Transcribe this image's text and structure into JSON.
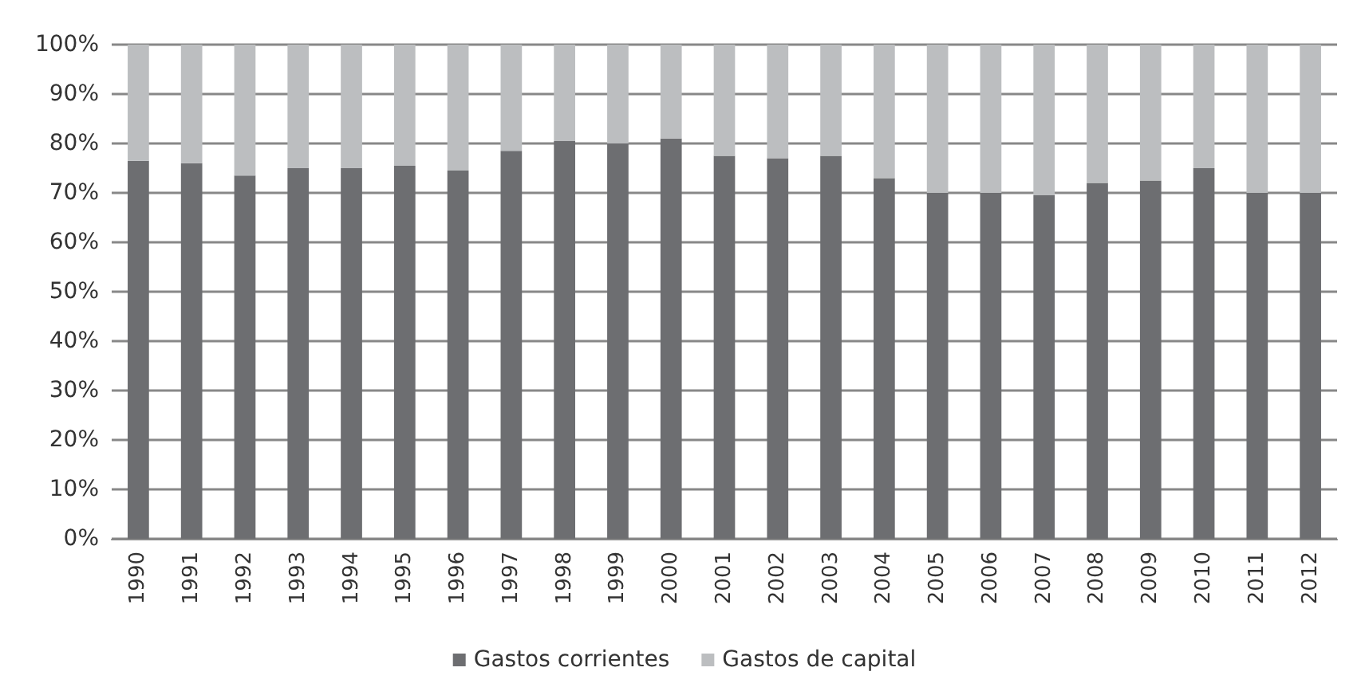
{
  "chart_data": {
    "type": "bar",
    "stacked": true,
    "categories": [
      "1990",
      "1991",
      "1992",
      "1993",
      "1994",
      "1995",
      "1996",
      "1997",
      "1998",
      "1999",
      "2000",
      "2001",
      "2002",
      "2003",
      "2004",
      "2005",
      "2006",
      "2007",
      "2008",
      "2009",
      "2010",
      "2011",
      "2012"
    ],
    "series": [
      {
        "name": "Gastos corrientes",
        "color": "#6d6e71",
        "values": [
          76.5,
          76,
          73.5,
          75,
          75,
          75.5,
          74.5,
          78.5,
          80.5,
          80,
          81,
          77.5,
          77,
          77.5,
          73,
          70,
          70,
          69.5,
          72,
          72.5,
          75,
          70,
          70
        ]
      },
      {
        "name": "Gastos de capital",
        "color": "#bcbec0",
        "values": [
          23.5,
          24,
          26.5,
          25,
          25,
          24.5,
          25.5,
          21.5,
          19.5,
          20,
          19,
          22.5,
          23,
          22.5,
          27,
          30,
          30,
          30.5,
          28,
          27.5,
          25,
          30,
          30
        ]
      }
    ],
    "ylim": [
      0,
      100
    ],
    "yticks": [
      {
        "value": 0,
        "label": "0%"
      },
      {
        "value": 10,
        "label": "10%"
      },
      {
        "value": 20,
        "label": "20%"
      },
      {
        "value": 30,
        "label": "30%"
      },
      {
        "value": 40,
        "label": "40%"
      },
      {
        "value": 50,
        "label": "50%"
      },
      {
        "value": 60,
        "label": "60%"
      },
      {
        "value": 70,
        "label": "70%"
      },
      {
        "value": 80,
        "label": "80%"
      },
      {
        "value": 90,
        "label": "90%"
      },
      {
        "value": 100,
        "label": "100%"
      }
    ],
    "grid": "y",
    "legend": "bottom"
  }
}
